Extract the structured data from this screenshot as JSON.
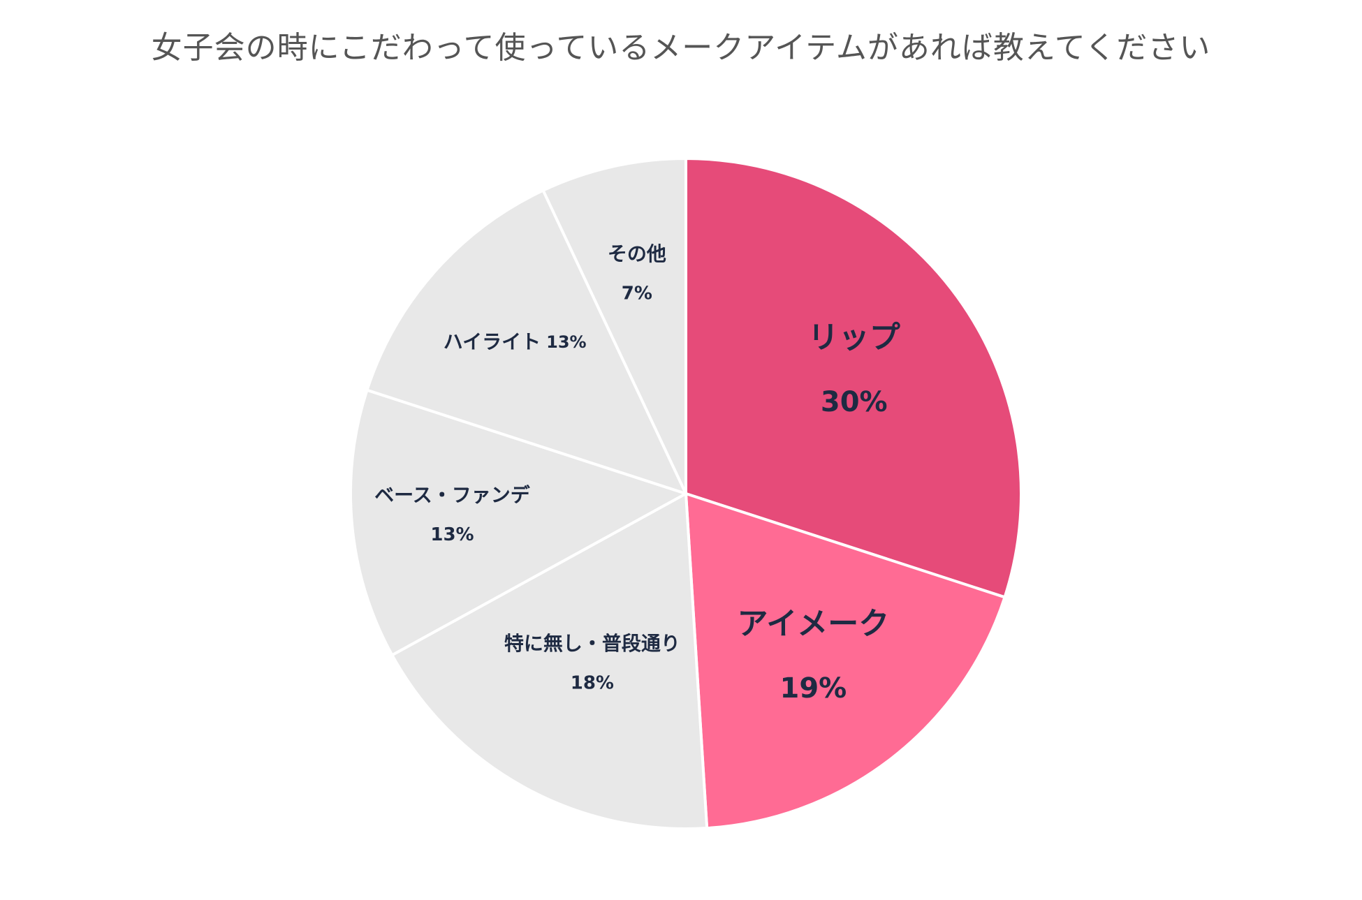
{
  "chart_data": {
    "type": "pie",
    "title": "女子会の時にこだわって使っているメークアイテムがあれば教えてください",
    "slices": [
      {
        "label": "リップ",
        "percent_label": "30%",
        "value": 30,
        "color": "#e64b79",
        "emphasis": true
      },
      {
        "label": "アイメーク",
        "percent_label": "19%",
        "value": 19,
        "color": "#ff6b94",
        "emphasis": true
      },
      {
        "label": "特に無し・普段通り",
        "percent_label": "18%",
        "value": 18,
        "color": "#e8e8e8",
        "emphasis": false
      },
      {
        "label": "ベース・ファンデ",
        "percent_label": "13%",
        "value": 13,
        "color": "#e8e8e8",
        "emphasis": false
      },
      {
        "label": "ハイライト",
        "percent_label": "13%",
        "value": 13,
        "color": "#e8e8e8",
        "emphasis": false,
        "inline_percent": true
      },
      {
        "label": "その他",
        "percent_label": "7%",
        "value": 7,
        "color": "#e8e8e8",
        "emphasis": false
      }
    ],
    "start": "12 o'clock",
    "direction": "clockwise",
    "slice_border_color": "#ffffff",
    "label_color": "#1e2a42"
  }
}
